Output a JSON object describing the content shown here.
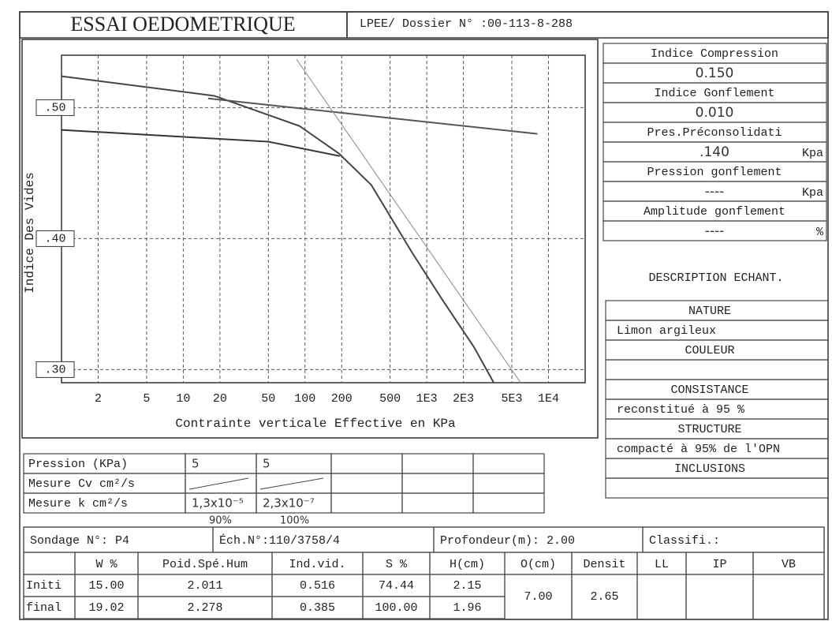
{
  "header": {
    "title": "ESSAI OEDOMETRIQUE",
    "dossier": "LPEE/ Dossier N° :00-113-8-288"
  },
  "chart_data": {
    "type": "line",
    "xlabel": "Contrainte verticale Effective en KPa",
    "ylabel": "Indice  Des  Vides",
    "xlog": true,
    "grid": true,
    "xlim": [
      1,
      20000
    ],
    "ylim": [
      0.29,
      0.54
    ],
    "xticks": [
      2,
      5,
      10,
      20,
      50,
      100,
      200,
      500,
      {
        "value": 1000,
        "label": "1E3"
      },
      {
        "value": 2000,
        "label": "2E3"
      },
      {
        "value": 5000,
        "label": "5E3"
      },
      {
        "value": 10000,
        "label": "1E4"
      }
    ],
    "yticks": [
      {
        "value": 0.3,
        "label": ".30"
      },
      {
        "value": 0.4,
        "label": ".40"
      },
      {
        "value": 0.5,
        "label": ".50"
      }
    ],
    "series": [
      {
        "color": "#444",
        "x": [
          1,
          18,
          90,
          190,
          350,
          750,
          1350,
          2450,
          3550
        ],
        "values": [
          0.524,
          0.509,
          0.486,
          0.465,
          0.441,
          0.39,
          0.353,
          0.317,
          0.29
        ]
      },
      {
        "color": "#333",
        "x": [
          1,
          50,
          193
        ],
        "values": [
          0.483,
          0.474,
          0.463
        ]
      },
      {
        "color": "#555",
        "x": [
          16,
          8100
        ],
        "values": [
          0.507,
          0.48
        ]
      },
      {
        "color": "#888",
        "x": [
          85,
          5900
        ],
        "values": [
          0.537,
          0.29
        ]
      }
    ]
  },
  "results": [
    {
      "label": "Indice Compression",
      "value": "0.150"
    },
    {
      "label": "Indice Gonflement",
      "value": "0.010"
    },
    {
      "label": "Pres.Préconsolidati",
      "value": ".140",
      "unit": "Kpa"
    },
    {
      "label": "Pression gonflement",
      "value": "----",
      "unit": "Kpa"
    },
    {
      "label": "Amplitude gonflement",
      "value": "----",
      "unit": "%"
    }
  ],
  "description": {
    "title": "DESCRIPTION ECHANT.",
    "items": [
      {
        "heading": "NATURE",
        "value": "Limon argileux"
      },
      {
        "heading": "COULEUR"
      },
      {
        "heading": "CONSISTANCE",
        "value": "reconstitué à 95 %"
      },
      {
        "heading": "STRUCTURE",
        "value": "compacté à 95% de l'OPN"
      },
      {
        "heading": "INCLUSIONS"
      }
    ]
  },
  "measures": {
    "rows": [
      {
        "label": "Pression (KPa)",
        "values": [
          "5",
          "5"
        ]
      },
      {
        "label": "Mesure Cv cm²/s"
      },
      {
        "label": "Mesure k cm²/s",
        "values": [
          "1,3x10⁻⁵",
          "2,3x10⁻⁷"
        ]
      }
    ],
    "notes": [
      "90%",
      "100%"
    ]
  },
  "sample": {
    "sondage": "Sondage N°: P4",
    "ech": "Éch.N°:110/3758/4",
    "profondeur": "Profondeur(m): 2.00",
    "classif": "Classifi.:"
  },
  "table": {
    "headers": [
      "W %",
      "Poid.Spé.Hum",
      "Ind.vid.",
      "S %",
      "H(cm)",
      "O(cm)",
      "Densit",
      "LL",
      "IP",
      "VB"
    ],
    "rows": [
      {
        "label": "Initi",
        "cells": [
          "15.00",
          "2.011",
          "0.516",
          "74.44",
          "2.15"
        ]
      },
      {
        "label": "final",
        "cells": [
          "19.02",
          "2.278",
          "0.385",
          "100.00",
          "1.96"
        ]
      }
    ],
    "merged": [
      "7.00",
      "2.65"
    ]
  }
}
